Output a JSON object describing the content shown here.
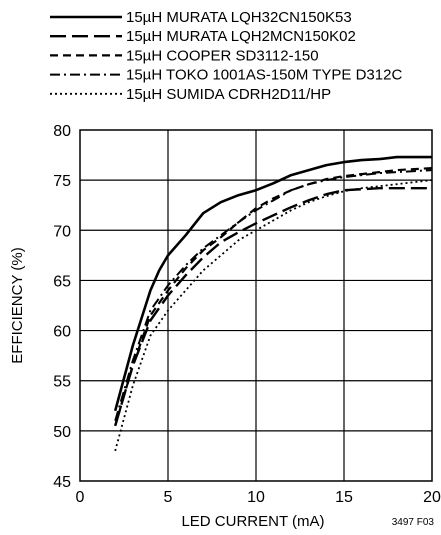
{
  "chart_data": {
    "type": "line",
    "title": "",
    "xlabel": "LED CURRENT (mA)",
    "ylabel": "EFFICIENCY (%)",
    "xlim": [
      0,
      20
    ],
    "ylim": [
      45,
      80
    ],
    "x_ticks": [
      0,
      5,
      10,
      15,
      20
    ],
    "y_ticks": [
      45,
      50,
      55,
      60,
      65,
      70,
      75,
      80
    ],
    "grid": true,
    "legend_position": "top",
    "figure_id": "3497 F03",
    "series": [
      {
        "name": "15µH MURATA LQH32CN150K53",
        "style": "solid",
        "x": [
          2,
          3,
          4,
          4.5,
          5,
          6,
          7,
          8,
          9,
          10,
          11,
          12,
          13,
          14,
          15,
          16,
          17,
          18,
          19,
          20
        ],
        "y": [
          52,
          58.5,
          64,
          66,
          67.5,
          69.5,
          71.7,
          72.8,
          73.5,
          74,
          74.7,
          75.5,
          76,
          76.5,
          76.8,
          77,
          77.1,
          77.3,
          77.3,
          77.3
        ]
      },
      {
        "name": "15µH MURATA LQH2MCN150K02",
        "style": "long-dash",
        "x": [
          2,
          3,
          4,
          5,
          6,
          7,
          8,
          9,
          10,
          11,
          12,
          13,
          14,
          15,
          16,
          17,
          18,
          19,
          20
        ],
        "y": [
          50.5,
          56.5,
          61,
          63.5,
          65.5,
          67.3,
          68.8,
          69.8,
          70.7,
          71.5,
          72.3,
          73,
          73.6,
          74,
          74.1,
          74.2,
          74.2,
          74.2,
          74.2
        ]
      },
      {
        "name": "15µH COOPER SD3112-150",
        "style": "short-dash",
        "x": [
          2,
          3,
          4,
          5,
          6,
          7,
          8,
          9,
          10,
          11,
          12,
          13,
          14,
          15,
          16,
          17,
          18,
          19,
          20
        ],
        "y": [
          50.5,
          56.5,
          61.5,
          64,
          66.2,
          68,
          69.3,
          70.8,
          72.2,
          73.2,
          74,
          74.6,
          75.1,
          75.4,
          75.6,
          75.8,
          76,
          76.1,
          76.2
        ]
      },
      {
        "name": "15µH TOKO 1001AS-150M TYPE D312C",
        "style": "dash-dot",
        "x": [
          2,
          3,
          4,
          5,
          6,
          7,
          8,
          9,
          10,
          11,
          12,
          13,
          14,
          15,
          16,
          17,
          18,
          19,
          20
        ],
        "y": [
          51,
          57,
          62,
          64.5,
          66.5,
          68.2,
          69.5,
          70.8,
          72,
          73,
          74,
          74.6,
          75,
          75.3,
          75.5,
          75.7,
          75.8,
          75.9,
          76
        ]
      },
      {
        "name": "15µH SUMIDA CDRH2D11/HP",
        "style": "dotted",
        "x": [
          2,
          3,
          4,
          5,
          6,
          7,
          8,
          9,
          10,
          11,
          12,
          13,
          14,
          15,
          16,
          17,
          18,
          19,
          20
        ],
        "y": [
          48,
          54.5,
          59.5,
          62,
          64,
          66,
          67.5,
          69,
          70,
          71,
          72,
          72.8,
          73.4,
          73.9,
          74.2,
          74.4,
          74.6,
          74.8,
          75
        ]
      }
    ]
  }
}
